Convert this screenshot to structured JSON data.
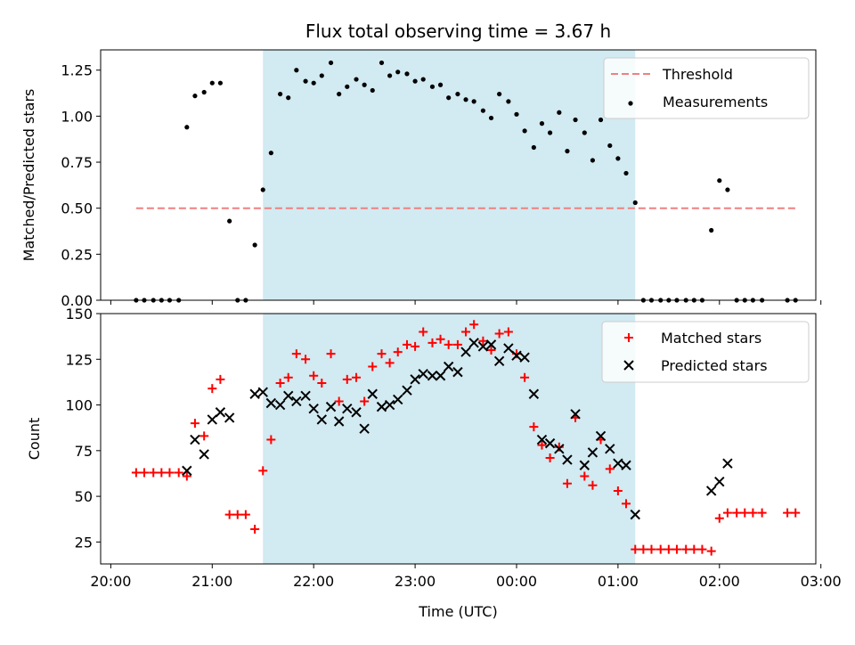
{
  "chart_data": [
    {
      "type": "scatter",
      "title": "Flux total observing time = 3.67 h",
      "xlabel": "",
      "ylabel": "Matched/Predicted stars",
      "x_unit": "hours since 20:00 UTC on the first night",
      "xlim": [
        -0.1,
        6.95
      ],
      "ylim": [
        0,
        1.36
      ],
      "yticks": [
        "0.00",
        "0.25",
        "0.50",
        "0.75",
        "1.00",
        "1.25"
      ],
      "shaded_span": {
        "x_start": 1.5,
        "x_end": 5.17,
        "color": "#add8e6"
      },
      "legend_position": "top-right",
      "series": [
        {
          "name": "Threshold",
          "style": "dashed-line",
          "color": "#f08080",
          "points": [
            [
              0.25,
              0.5
            ],
            [
              6.75,
              0.5
            ]
          ]
        },
        {
          "name": "Measurements",
          "style": "dot",
          "color": "#000000",
          "points": [
            [
              0.25,
              0
            ],
            [
              0.33,
              0
            ],
            [
              0.42,
              0
            ],
            [
              0.5,
              0
            ],
            [
              0.58,
              0
            ],
            [
              0.67,
              0
            ],
            [
              0.75,
              0.94
            ],
            [
              0.83,
              1.11
            ],
            [
              0.92,
              1.13
            ],
            [
              1.0,
              1.18
            ],
            [
              1.08,
              1.18
            ],
            [
              1.17,
              0.43
            ],
            [
              1.25,
              0
            ],
            [
              1.33,
              0
            ],
            [
              1.42,
              0.3
            ],
            [
              1.5,
              0.6
            ],
            [
              1.58,
              0.8
            ],
            [
              1.67,
              1.12
            ],
            [
              1.75,
              1.1
            ],
            [
              1.83,
              1.25
            ],
            [
              1.92,
              1.19
            ],
            [
              2.0,
              1.18
            ],
            [
              2.08,
              1.22
            ],
            [
              2.17,
              1.29
            ],
            [
              2.25,
              1.12
            ],
            [
              2.33,
              1.16
            ],
            [
              2.42,
              1.2
            ],
            [
              2.5,
              1.17
            ],
            [
              2.58,
              1.14
            ],
            [
              2.67,
              1.29
            ],
            [
              2.75,
              1.22
            ],
            [
              2.83,
              1.24
            ],
            [
              2.92,
              1.23
            ],
            [
              3.0,
              1.19
            ],
            [
              3.08,
              1.2
            ],
            [
              3.17,
              1.16
            ],
            [
              3.25,
              1.17
            ],
            [
              3.33,
              1.1
            ],
            [
              3.42,
              1.12
            ],
            [
              3.5,
              1.09
            ],
            [
              3.58,
              1.08
            ],
            [
              3.67,
              1.03
            ],
            [
              3.75,
              0.99
            ],
            [
              3.83,
              1.12
            ],
            [
              3.92,
              1.08
            ],
            [
              4.0,
              1.01
            ],
            [
              4.08,
              0.92
            ],
            [
              4.17,
              0.83
            ],
            [
              4.25,
              0.96
            ],
            [
              4.33,
              0.91
            ],
            [
              4.42,
              1.02
            ],
            [
              4.5,
              0.81
            ],
            [
              4.58,
              0.98
            ],
            [
              4.67,
              0.91
            ],
            [
              4.75,
              0.76
            ],
            [
              4.83,
              0.98
            ],
            [
              4.92,
              0.84
            ],
            [
              5.0,
              0.77
            ],
            [
              5.08,
              0.69
            ],
            [
              5.17,
              0.53
            ],
            [
              5.25,
              0
            ],
            [
              5.33,
              0
            ],
            [
              5.42,
              0
            ],
            [
              5.5,
              0
            ],
            [
              5.58,
              0
            ],
            [
              5.67,
              0
            ],
            [
              5.75,
              0
            ],
            [
              5.83,
              0
            ],
            [
              5.92,
              0.38
            ],
            [
              6.0,
              0.65
            ],
            [
              6.08,
              0.6
            ],
            [
              6.17,
              0
            ],
            [
              6.25,
              0
            ],
            [
              6.33,
              0
            ],
            [
              6.42,
              0
            ],
            [
              6.67,
              0
            ],
            [
              6.75,
              0
            ]
          ]
        }
      ]
    },
    {
      "type": "scatter",
      "title": "",
      "xlabel": "Time (UTC)",
      "ylabel": "Count",
      "x_unit": "hours since 20:00 UTC on the first night",
      "xlim": [
        -0.1,
        6.95
      ],
      "ylim": [
        13,
        150
      ],
      "yticks": [
        "25",
        "50",
        "75",
        "100",
        "125",
        "150"
      ],
      "xticks": [
        "20:00",
        "21:00",
        "22:00",
        "23:00",
        "00:00",
        "01:00",
        "02:00",
        "03:00"
      ],
      "shaded_span": {
        "x_start": 1.5,
        "x_end": 5.17,
        "color": "#add8e6"
      },
      "legend_position": "top-right",
      "series": [
        {
          "name": "Matched stars",
          "style": "plus",
          "color": "#ff0000",
          "points": [
            [
              0.25,
              63
            ],
            [
              0.33,
              63
            ],
            [
              0.42,
              63
            ],
            [
              0.5,
              63
            ],
            [
              0.58,
              63
            ],
            [
              0.67,
              63
            ],
            [
              0.75,
              61
            ],
            [
              0.83,
              90
            ],
            [
              0.92,
              83
            ],
            [
              1.0,
              109
            ],
            [
              1.08,
              114
            ],
            [
              1.17,
              40
            ],
            [
              1.25,
              40
            ],
            [
              1.33,
              40
            ],
            [
              1.42,
              32
            ],
            [
              1.5,
              64
            ],
            [
              1.58,
              81
            ],
            [
              1.67,
              112
            ],
            [
              1.75,
              115
            ],
            [
              1.83,
              128
            ],
            [
              1.92,
              125
            ],
            [
              2.0,
              116
            ],
            [
              2.08,
              112
            ],
            [
              2.17,
              128
            ],
            [
              2.25,
              102
            ],
            [
              2.33,
              114
            ],
            [
              2.42,
              115
            ],
            [
              2.5,
              102
            ],
            [
              2.58,
              121
            ],
            [
              2.67,
              128
            ],
            [
              2.75,
              123
            ],
            [
              2.83,
              129
            ],
            [
              2.92,
              133
            ],
            [
              3.0,
              132
            ],
            [
              3.08,
              140
            ],
            [
              3.17,
              134
            ],
            [
              3.25,
              136
            ],
            [
              3.33,
              133
            ],
            [
              3.42,
              133
            ],
            [
              3.5,
              140
            ],
            [
              3.58,
              144
            ],
            [
              3.67,
              135
            ],
            [
              3.75,
              130
            ],
            [
              3.83,
              139
            ],
            [
              3.92,
              140
            ],
            [
              4.0,
              128
            ],
            [
              4.08,
              115
            ],
            [
              4.17,
              88
            ],
            [
              4.25,
              78
            ],
            [
              4.33,
              71
            ],
            [
              4.42,
              77
            ],
            [
              4.5,
              57
            ],
            [
              4.58,
              93
            ],
            [
              4.67,
              61
            ],
            [
              4.75,
              56
            ],
            [
              4.83,
              81
            ],
            [
              4.92,
              65
            ],
            [
              5.0,
              53
            ],
            [
              5.08,
              46
            ],
            [
              5.17,
              21
            ],
            [
              5.25,
              21
            ],
            [
              5.33,
              21
            ],
            [
              5.42,
              21
            ],
            [
              5.5,
              21
            ],
            [
              5.58,
              21
            ],
            [
              5.67,
              21
            ],
            [
              5.75,
              21
            ],
            [
              5.83,
              21
            ],
            [
              5.92,
              20
            ],
            [
              6.0,
              38
            ],
            [
              6.08,
              41
            ],
            [
              6.17,
              41
            ],
            [
              6.25,
              41
            ],
            [
              6.33,
              41
            ],
            [
              6.42,
              41
            ],
            [
              6.67,
              41
            ],
            [
              6.75,
              41
            ]
          ]
        },
        {
          "name": "Predicted stars",
          "style": "x",
          "color": "#000000",
          "points": [
            [
              0.75,
              64
            ],
            [
              0.83,
              81
            ],
            [
              0.92,
              73
            ],
            [
              1.0,
              92
            ],
            [
              1.08,
              96
            ],
            [
              1.17,
              93
            ],
            [
              1.42,
              106
            ],
            [
              1.5,
              107
            ],
            [
              1.58,
              101
            ],
            [
              1.67,
              100
            ],
            [
              1.75,
              105
            ],
            [
              1.83,
              102
            ],
            [
              1.92,
              105
            ],
            [
              2.0,
              98
            ],
            [
              2.08,
              92
            ],
            [
              2.17,
              99
            ],
            [
              2.25,
              91
            ],
            [
              2.33,
              98
            ],
            [
              2.42,
              96
            ],
            [
              2.5,
              87
            ],
            [
              2.58,
              106
            ],
            [
              2.67,
              99
            ],
            [
              2.75,
              100
            ],
            [
              2.83,
              103
            ],
            [
              2.92,
              108
            ],
            [
              3.0,
              114
            ],
            [
              3.08,
              117
            ],
            [
              3.17,
              116
            ],
            [
              3.25,
              116
            ],
            [
              3.33,
              121
            ],
            [
              3.42,
              118
            ],
            [
              3.5,
              129
            ],
            [
              3.58,
              134
            ],
            [
              3.67,
              132
            ],
            [
              3.75,
              133
            ],
            [
              3.83,
              124
            ],
            [
              3.92,
              131
            ],
            [
              4.0,
              127
            ],
            [
              4.08,
              126
            ],
            [
              4.17,
              106
            ],
            [
              4.25,
              81
            ],
            [
              4.33,
              79
            ],
            [
              4.42,
              76
            ],
            [
              4.5,
              70
            ],
            [
              4.58,
              95
            ],
            [
              4.67,
              67
            ],
            [
              4.75,
              74
            ],
            [
              4.83,
              83
            ],
            [
              4.92,
              76
            ],
            [
              5.0,
              68
            ],
            [
              5.08,
              67
            ],
            [
              5.17,
              40
            ],
            [
              5.92,
              53
            ],
            [
              6.0,
              58
            ],
            [
              6.08,
              68
            ]
          ]
        }
      ]
    }
  ]
}
